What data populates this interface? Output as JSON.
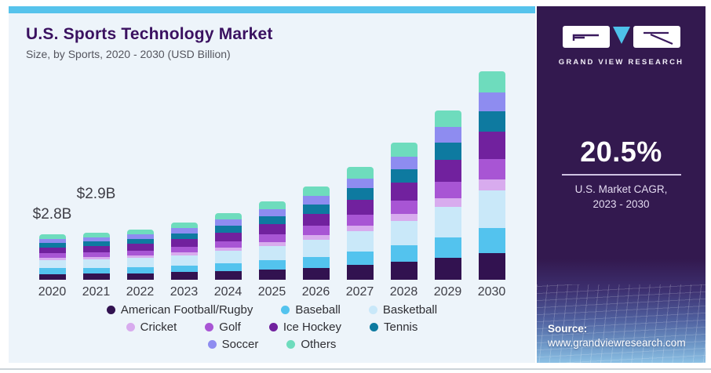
{
  "header": {
    "title": "U.S. Sports Technology Market",
    "subtitle": "Size, by Sports, 2020 - 2030 (USD Billion)"
  },
  "chart_data": {
    "type": "bar",
    "stacked": true,
    "title": "U.S. Sports Technology Market Size, by Sports, 2020 - 2030 (USD Billion)",
    "unit": "USD Billion",
    "grid": false,
    "legend_position": "bottom",
    "ylim": [
      0,
      13
    ],
    "categories": [
      "2020",
      "2021",
      "2022",
      "2023",
      "2024",
      "2025",
      "2026",
      "2027",
      "2028",
      "2029",
      "2030"
    ],
    "totals": [
      2.8,
      2.9,
      3.1,
      3.5,
      4.1,
      4.8,
      5.7,
      6.9,
      8.4,
      10.4,
      12.8
    ],
    "series": [
      {
        "name": "American Football/Rugby",
        "color": "#321250",
        "values": [
          0.36,
          0.38,
          0.4,
          0.46,
          0.53,
          0.62,
          0.74,
          0.9,
          1.09,
          1.35,
          1.66
        ]
      },
      {
        "name": "Baseball",
        "color": "#53c3ee",
        "values": [
          0.34,
          0.35,
          0.37,
          0.42,
          0.49,
          0.58,
          0.68,
          0.83,
          1.01,
          1.25,
          1.54
        ]
      },
      {
        "name": "Basketball",
        "color": "#c9e8f9",
        "values": [
          0.5,
          0.52,
          0.56,
          0.63,
          0.74,
          0.86,
          1.03,
          1.24,
          1.51,
          1.87,
          2.3
        ]
      },
      {
        "name": "Cricket",
        "color": "#d8abee",
        "values": [
          0.14,
          0.15,
          0.16,
          0.18,
          0.21,
          0.24,
          0.29,
          0.35,
          0.42,
          0.52,
          0.64
        ]
      },
      {
        "name": "Golf",
        "color": "#a855d4",
        "values": [
          0.28,
          0.29,
          0.31,
          0.35,
          0.41,
          0.48,
          0.57,
          0.69,
          0.84,
          1.04,
          1.28
        ]
      },
      {
        "name": "Ice Hockey",
        "color": "#71219e",
        "values": [
          0.36,
          0.38,
          0.4,
          0.46,
          0.53,
          0.62,
          0.74,
          0.9,
          1.09,
          1.35,
          1.66
        ]
      },
      {
        "name": "Tennis",
        "color": "#0e7aa0",
        "values": [
          0.28,
          0.29,
          0.31,
          0.35,
          0.41,
          0.48,
          0.57,
          0.69,
          0.84,
          1.04,
          1.28
        ]
      },
      {
        "name": "Soccer",
        "color": "#8e8cf0",
        "values": [
          0.25,
          0.26,
          0.28,
          0.32,
          0.37,
          0.43,
          0.51,
          0.62,
          0.76,
          0.94,
          1.15
        ]
      },
      {
        "name": "Others",
        "color": "#6edcbd",
        "values": [
          0.28,
          0.29,
          0.31,
          0.35,
          0.41,
          0.48,
          0.57,
          0.69,
          0.84,
          1.04,
          1.28
        ]
      }
    ],
    "annotations": [
      {
        "category": "2020",
        "text": "$2.8B"
      },
      {
        "category": "2021",
        "text": "$2.9B"
      }
    ],
    "legend_rows": [
      [
        0,
        1,
        2
      ],
      [
        3,
        4,
        5,
        6
      ],
      [
        7,
        8
      ]
    ]
  },
  "panel": {
    "logo_text": "GRAND VIEW RESEARCH",
    "cagr_value": "20.5%",
    "cagr_line1": "U.S. Market CAGR,",
    "cagr_line2": "2023 - 2030",
    "source_label": "Source:",
    "source_url": "www.grandviewresearch.com",
    "colors": {
      "background": "#33194f",
      "accent_blue": "#4ec1ea"
    }
  },
  "colors": {
    "card_bg": "#edf4fa",
    "top_strip": "#56c3ec",
    "title": "#3a1160",
    "subtitle": "#54555e",
    "axis_label": "#3e3e46"
  }
}
